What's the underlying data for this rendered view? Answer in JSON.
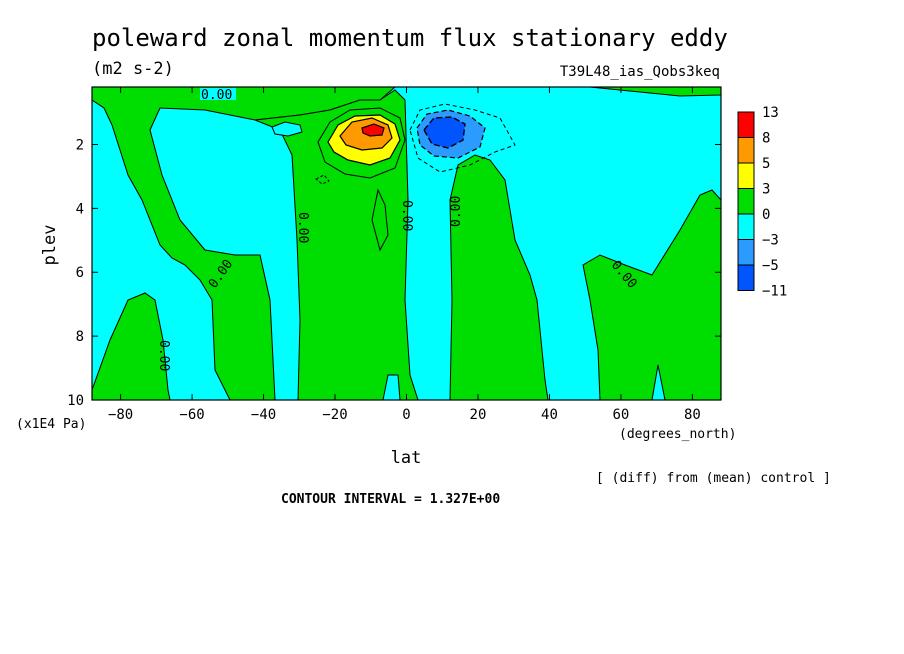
{
  "chart_data": {
    "type": "contour",
    "title": "poleward zonal momentum flux stationary eddy",
    "units": "(m2 s-2)",
    "experiment": "T39L48_ias_Qobs3keq",
    "xlabel": "lat",
    "xunits": "(degrees_north)",
    "ylabel": "plev",
    "yunits": "(x1E4 Pa)",
    "xlim": [
      -88,
      88
    ],
    "ylim": [
      10,
      0.2
    ],
    "x_ticks": [
      -80,
      -60,
      -40,
      -20,
      0,
      20,
      40,
      60,
      80
    ],
    "x_tick_labels": [
      "−80",
      "−60",
      "−40",
      "−20",
      "0",
      "20",
      "40",
      "60",
      "80"
    ],
    "y_ticks": [
      2,
      4,
      6,
      8,
      10
    ],
    "y_tick_labels": [
      "2",
      "4",
      "6",
      "8",
      "10"
    ],
    "legend": {
      "placement": "right",
      "labels": [
        "13",
        "8",
        "5",
        "3",
        "0",
        "−3",
        "−5",
        "−11"
      ],
      "colors": [
        "#ff0000",
        "#ff9900",
        "#ffff00",
        "#00dd00",
        "#00ffff",
        "#2b9bff",
        "#0055ff"
      ]
    },
    "contour_labels": [
      {
        "text": "0.00",
        "lat": -57,
        "plev": 0.3,
        "rotation": 0
      },
      {
        "text": "0.00",
        "lat": -29,
        "plev": 4.5,
        "rotation": 90
      },
      {
        "text": "0.00",
        "lat": -50,
        "plev": 6.3,
        "rotation": -55
      },
      {
        "text": "0.00",
        "lat": -66,
        "plev": 9.0,
        "rotation": 90
      },
      {
        "text": "0.00",
        "lat": 1,
        "plev": 4.2,
        "rotation": 90
      },
      {
        "text": "0.00",
        "lat": 14,
        "plev": 4.0,
        "rotation": -90
      },
      {
        "text": "0.00",
        "lat": 61,
        "plev": 6.4,
        "rotation": 50
      }
    ],
    "notes": [
      "[ (diff) from (mean) control ]",
      "CONTOUR INTERVAL = 1.327E+00"
    ]
  }
}
